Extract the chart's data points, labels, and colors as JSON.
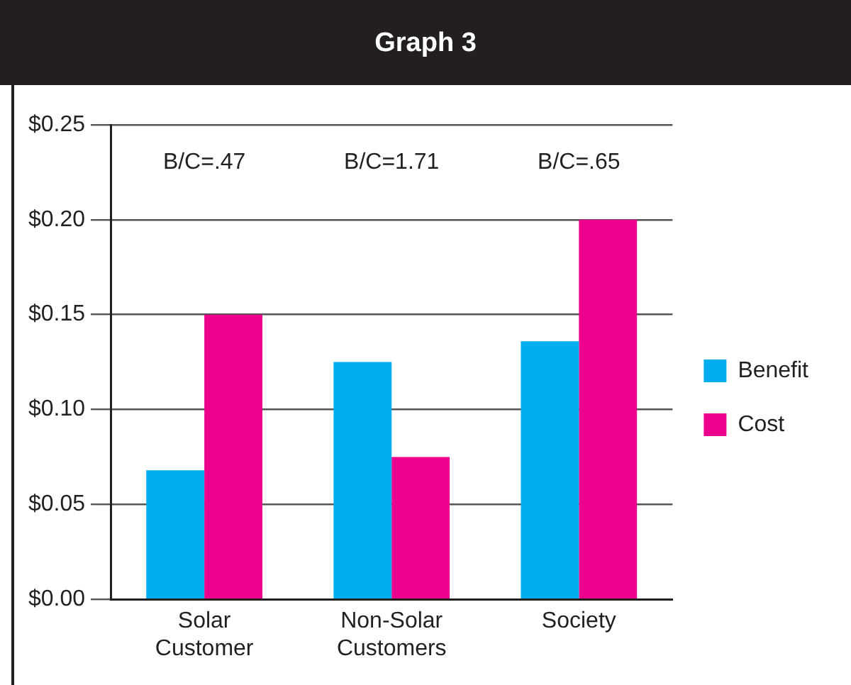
{
  "chart_data": {
    "type": "bar",
    "title": "Graph 3",
    "categories": [
      "Solar Customer",
      "Non-Solar Customers",
      "Society"
    ],
    "series": [
      {
        "name": "Benefit",
        "color": "#00aeef",
        "values": [
          0.068,
          0.125,
          0.136
        ]
      },
      {
        "name": "Cost",
        "color": "#ec008c",
        "values": [
          0.15,
          0.075,
          0.2
        ]
      }
    ],
    "ylim": [
      0,
      0.25
    ],
    "yticks": [
      {
        "value": 0,
        "label": "$0.00"
      },
      {
        "value": 0.05,
        "label": "$0.05"
      },
      {
        "value": 0.1,
        "label": "$0.10"
      },
      {
        "value": 0.15,
        "label": "$0.15"
      },
      {
        "value": 0.2,
        "label": "$0.20"
      },
      {
        "value": 0.25,
        "label": "$0.25"
      }
    ],
    "annotations": [
      "B/C=.47",
      "B/C=1.71",
      "B/C=.65"
    ],
    "grid": "y",
    "legend": "right"
  }
}
